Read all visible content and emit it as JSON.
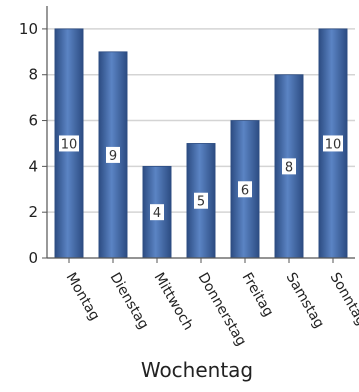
{
  "chart_data": {
    "type": "bar",
    "title": "",
    "xlabel": "Wochentag",
    "ylabel": "",
    "categories": [
      "Montag",
      "Dienstag",
      "Mittwoch",
      "Donnerstag",
      "Freitag",
      "Samstag",
      "Sonntag"
    ],
    "values": [
      10,
      9,
      4,
      5,
      6,
      8,
      10
    ],
    "ylim": [
      0,
      11
    ],
    "yticks": [
      0,
      2,
      4,
      6,
      8,
      10
    ],
    "grid": true,
    "legend": "none",
    "bar_color": "#3d63a0",
    "bar_color_light": "#5b84c4",
    "bar_color_dark": "#2c4c82",
    "grid_color": "#d4d4d4",
    "axis_color": "#555555"
  }
}
